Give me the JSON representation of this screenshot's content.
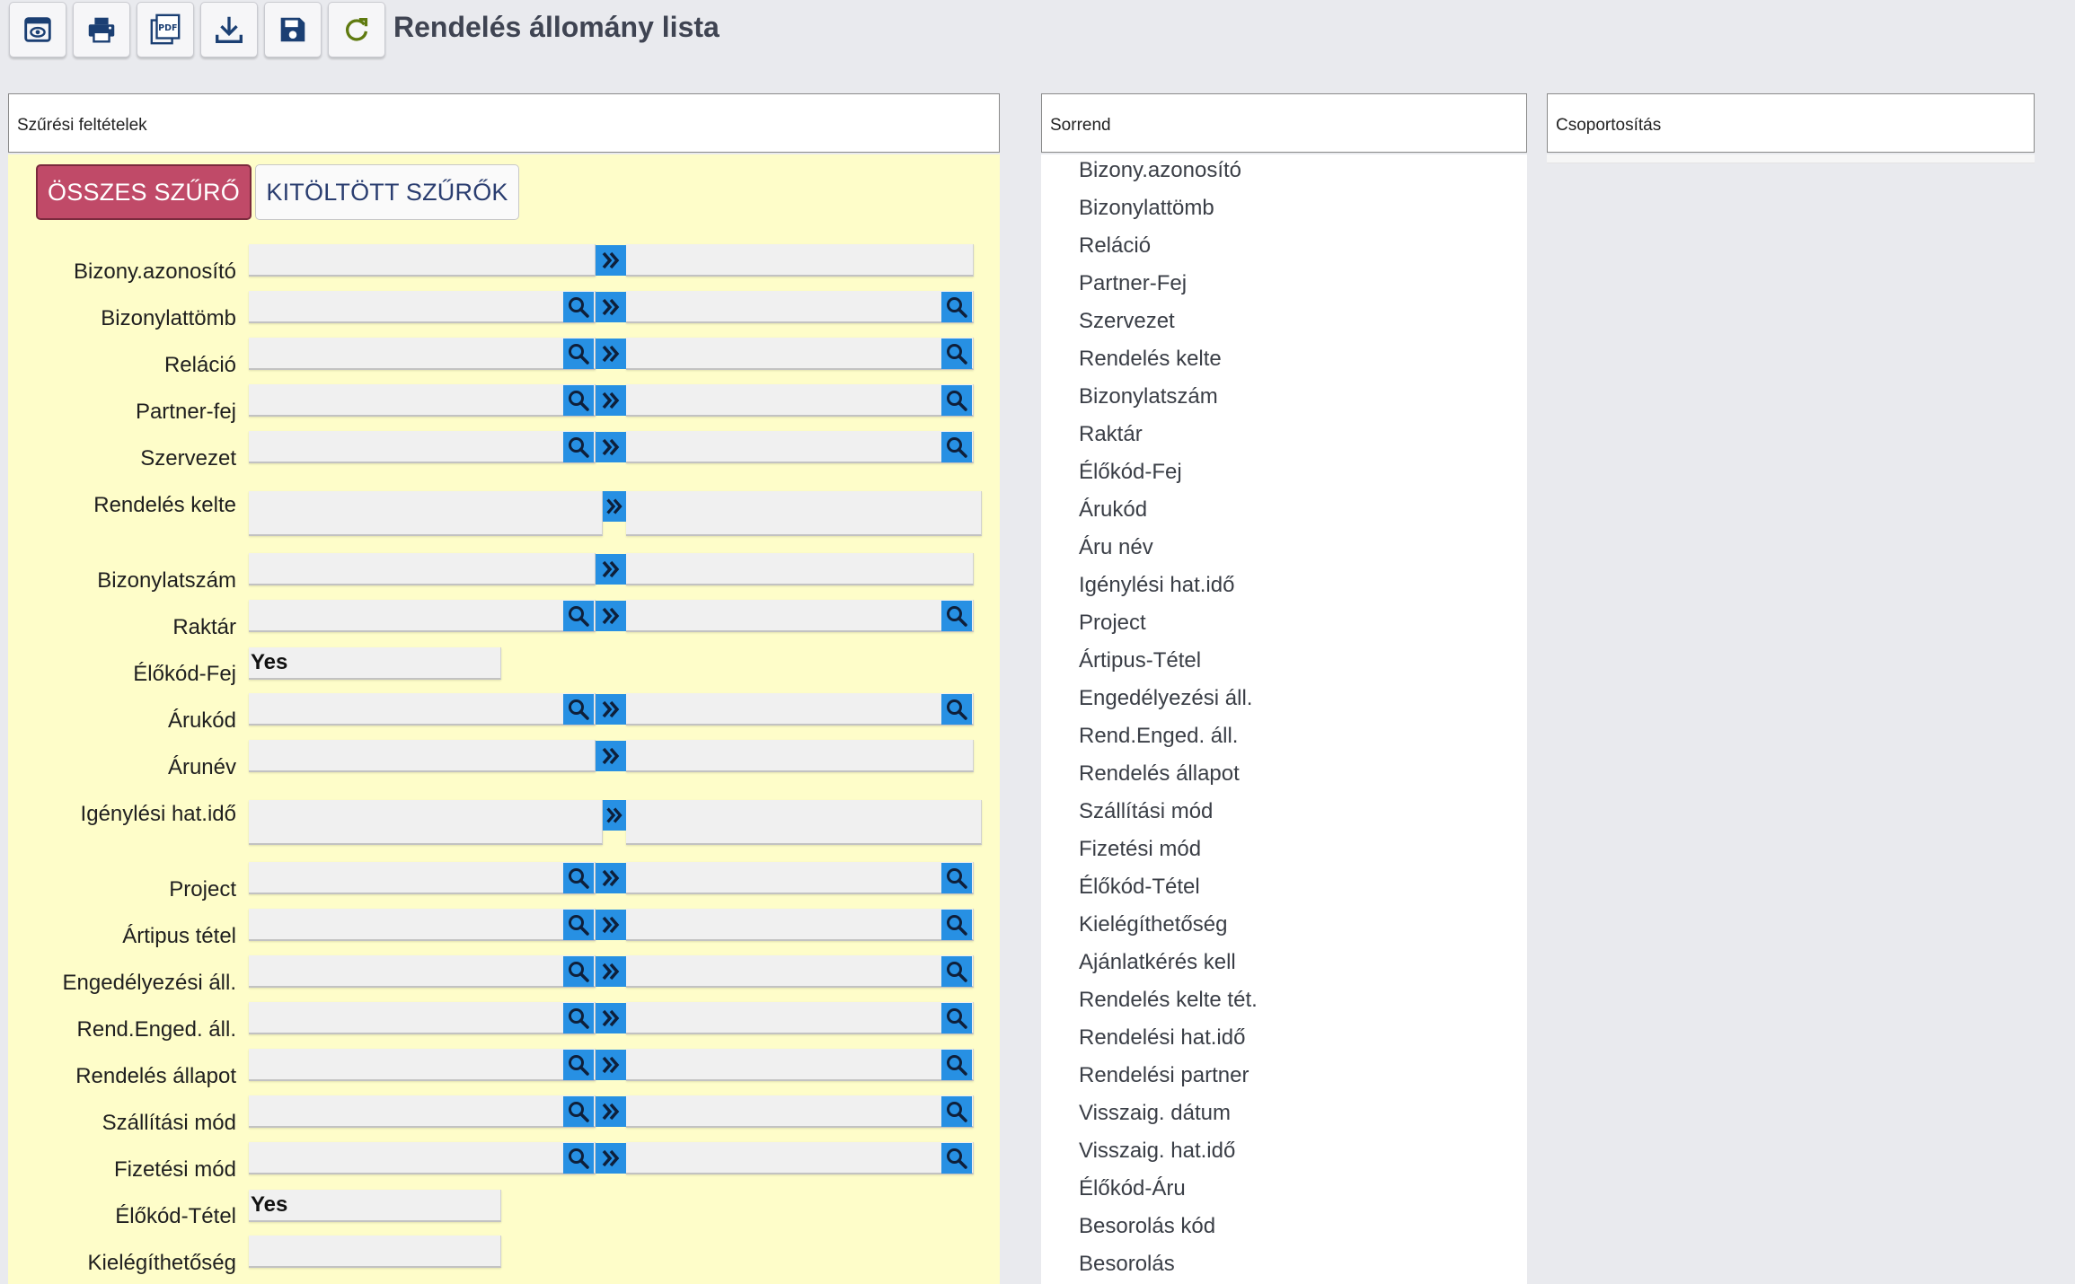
{
  "toolbar": {
    "buttons": [
      {
        "name": "preview-icon"
      },
      {
        "name": "print-icon"
      },
      {
        "name": "pdf-icon",
        "text": "PDF"
      },
      {
        "name": "download-icon"
      },
      {
        "name": "save-icon"
      },
      {
        "name": "refresh-icon"
      }
    ]
  },
  "page": {
    "title": "Rendelés állomány lista"
  },
  "panels": {
    "filters_title": "Szűrési feltételek",
    "sort_title": "Sorrend",
    "group_title": "Csoportosítás"
  },
  "tabs": {
    "all": "ÖSSZES SZŰRŐ",
    "filled": "KITÖLTÖTT SZŰRŐK"
  },
  "filters": [
    {
      "label": "Bizony.azonosító"
    },
    {
      "label": "Bizonylattömb"
    },
    {
      "label": "Reláció"
    },
    {
      "label": "Partner-fej"
    },
    {
      "label": "Szervezet"
    },
    {
      "label": "Rendelés kelte"
    },
    {
      "label": "Bizonylatszám"
    },
    {
      "label": "Raktár"
    },
    {
      "label": "Élőkód-Fej",
      "value": "Yes"
    },
    {
      "label": "Árukód"
    },
    {
      "label": "Árunév"
    },
    {
      "label": "Igénylési hat.idő"
    },
    {
      "label": "Project"
    },
    {
      "label": "Ártipus tétel"
    },
    {
      "label": "Engedélyezési áll."
    },
    {
      "label": "Rend.Enged. áll."
    },
    {
      "label": "Rendelés állapot"
    },
    {
      "label": "Szállítási mód"
    },
    {
      "label": "Fizetési mód"
    },
    {
      "label": "Élőkód-Tétel",
      "value": "Yes"
    },
    {
      "label": "Kielégíthetőség"
    }
  ],
  "sort_items": [
    "Bizony.azonosító",
    "Bizonylattömb",
    "Reláció",
    "Partner-Fej",
    "Szervezet",
    "Rendelés kelte",
    "Bizonylatszám",
    "Raktár",
    "Élőkód-Fej",
    "Árukód",
    "Áru név",
    "Igénylési hat.idő",
    "Project",
    "Ártipus-Tétel",
    "Engedélyezési áll.",
    "Rend.Enged. áll.",
    "Rendelés állapot",
    "Szállítási mód",
    "Fizetési mód",
    "Élőkód-Tétel",
    "Kielégíthetőség",
    "Ajánlatkérés kell",
    "Rendelés kelte tét.",
    "Rendelési hat.idő",
    "Rendelési partner",
    "Visszaig. dátum",
    "Visszaig. hat.idő",
    "Élőkód-Áru",
    "Besorolás kód",
    "Besorolás"
  ],
  "colors": {
    "accent": "#2790e3",
    "active_tab": "#c04a68",
    "filter_bg": "#fefdc9",
    "icon_dark": "#1b3f73"
  }
}
